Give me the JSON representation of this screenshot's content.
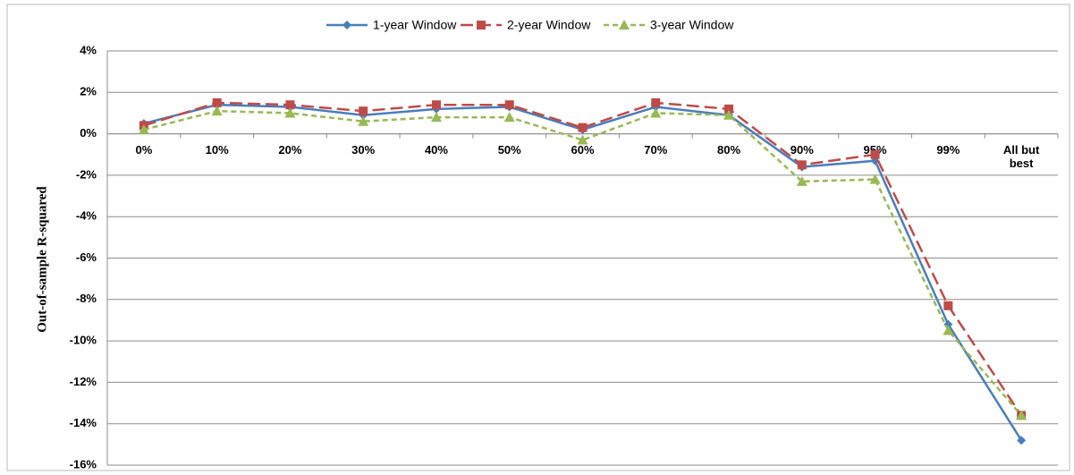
{
  "chart_data": {
    "type": "line",
    "y_axis_label": "Out-of-sample R-squared",
    "categories": [
      "0%",
      "10%",
      "20%",
      "30%",
      "40%",
      "50%",
      "60%",
      "70%",
      "80%",
      "90%",
      "95%",
      "99%",
      "All but best"
    ],
    "series": [
      {
        "name": "1-year Window",
        "color": "#4a7ebb",
        "marker": "diamond",
        "dash": "solid",
        "values": [
          0.5,
          1.4,
          1.3,
          0.9,
          1.2,
          1.3,
          0.2,
          1.3,
          0.9,
          -1.6,
          -1.3,
          -9.2,
          -14.8
        ]
      },
      {
        "name": "2-year Window",
        "color": "#be4b48",
        "marker": "square",
        "dash": "long-dash",
        "values": [
          0.4,
          1.5,
          1.4,
          1.1,
          1.4,
          1.4,
          0.3,
          1.5,
          1.2,
          -1.5,
          -1.0,
          -8.3,
          -13.6
        ]
      },
      {
        "name": "3-year Window",
        "color": "#98b954",
        "marker": "triangle",
        "dash": "short-dash",
        "values": [
          0.2,
          1.1,
          1.0,
          0.6,
          0.8,
          0.8,
          -0.3,
          1.0,
          0.9,
          -2.3,
          -2.2,
          -9.5,
          -13.6
        ]
      }
    ],
    "ylim": [
      -16,
      4
    ],
    "yticks": [
      {
        "value": -16,
        "label": "-16%"
      },
      {
        "value": -14,
        "label": "-14%"
      },
      {
        "value": -12,
        "label": "-12%"
      },
      {
        "value": -10,
        "label": "-10%"
      },
      {
        "value": -8,
        "label": "-8%"
      },
      {
        "value": -6,
        "label": "-6%"
      },
      {
        "value": -4,
        "label": "-4%"
      },
      {
        "value": -2,
        "label": "-2%"
      },
      {
        "value": 0,
        "label": "0%"
      },
      {
        "value": 2,
        "label": "2%"
      },
      {
        "value": 4,
        "label": "4%"
      }
    ],
    "grid": true,
    "legend": "top"
  }
}
